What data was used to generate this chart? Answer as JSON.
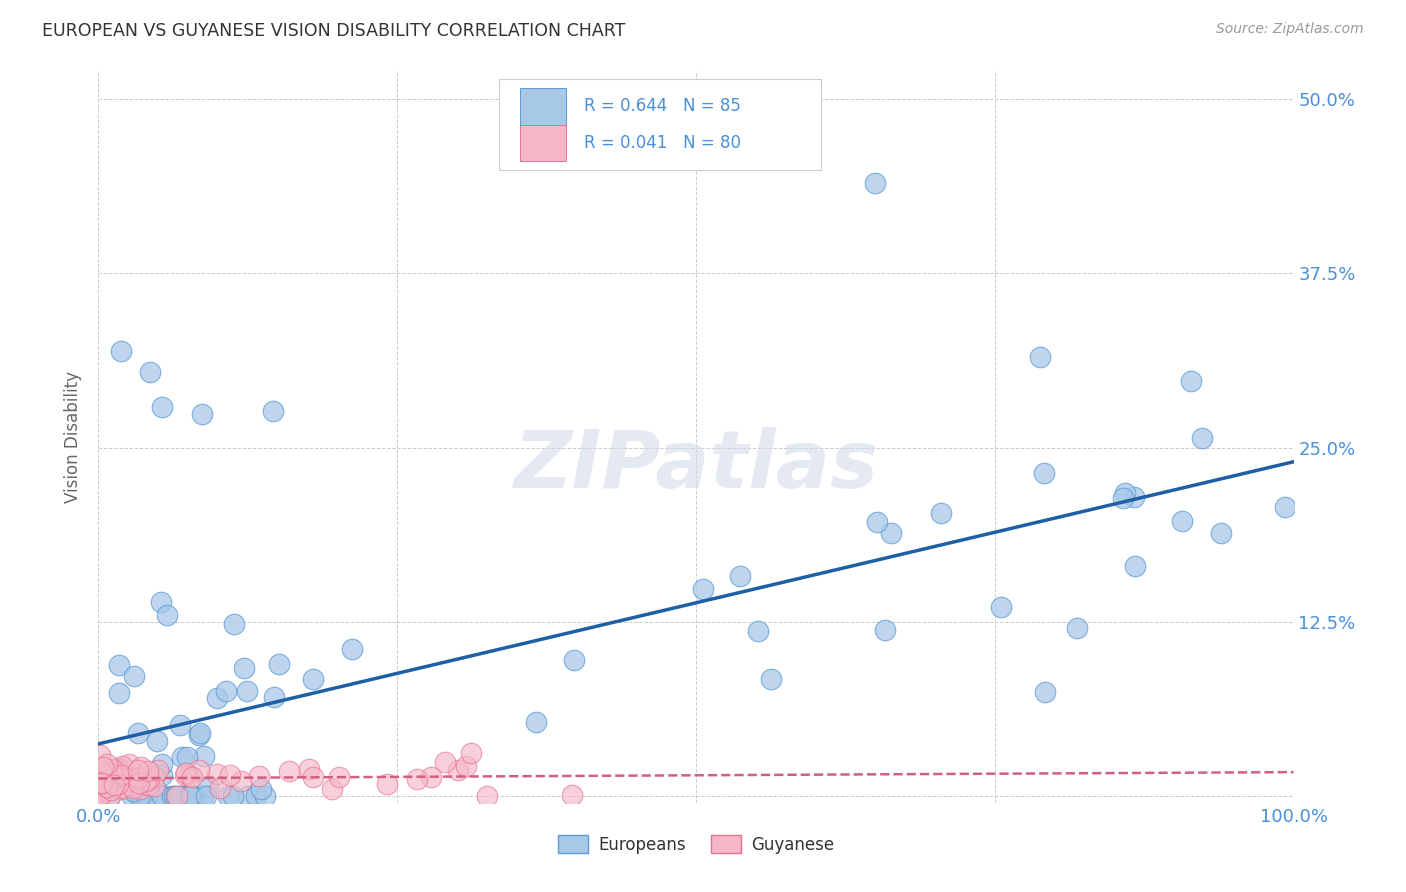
{
  "title": "EUROPEAN VS GUYANESE VISION DISABILITY CORRELATION CHART",
  "source": "Source: ZipAtlas.com",
  "ylabel": "Vision Disability",
  "xlim": [
    0.0,
    1.0
  ],
  "ylim": [
    -0.005,
    0.52
  ],
  "xticks": [
    0.0,
    0.25,
    0.5,
    0.75,
    1.0
  ],
  "xtick_labels": [
    "0.0%",
    "",
    "",
    "",
    "100.0%"
  ],
  "yticks": [
    0.0,
    0.125,
    0.25,
    0.375,
    0.5
  ],
  "ytick_labels": [
    "",
    "12.5%",
    "25.0%",
    "37.5%",
    "50.0%"
  ],
  "blue_R": 0.644,
  "blue_N": 85,
  "pink_R": 0.041,
  "pink_N": 80,
  "blue_color": "#a8c8e8",
  "blue_edge_color": "#5b9bd5",
  "pink_color": "#f4b8c8",
  "pink_edge_color": "#e87090",
  "blue_line_color": "#1f5fa6",
  "pink_line_color": "#d06080",
  "background_color": "#ffffff",
  "grid_color": "#cccccc",
  "title_color": "#333333",
  "axis_tick_color": "#4a90d9",
  "legend_text_color": "#4a90d9",
  "watermark": "ZIPatlas",
  "legend_labels": [
    "Europeans",
    "Guyanese"
  ]
}
